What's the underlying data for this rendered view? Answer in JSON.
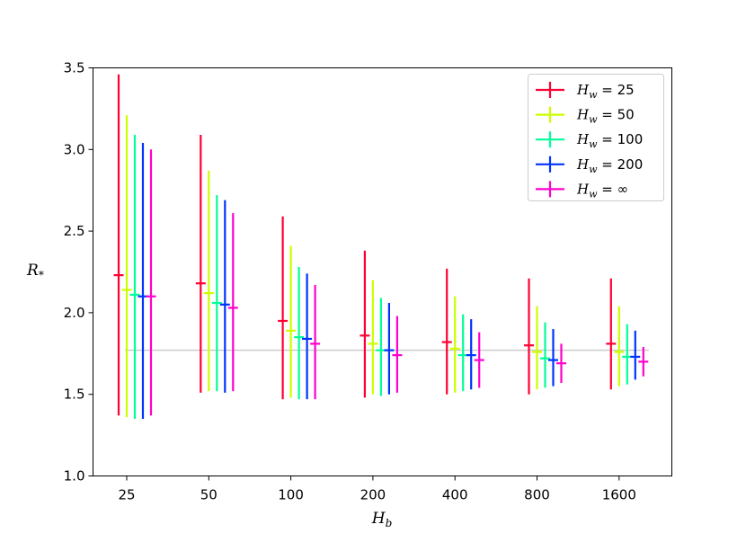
{
  "chart_data": {
    "type": "errorbar",
    "categories": [
      "25",
      "50",
      "100",
      "200",
      "400",
      "800",
      "1600"
    ],
    "xlabel": "H_b",
    "ylabel": "R_*",
    "ylim": [
      1.0,
      3.5
    ],
    "yticks": [
      "1.0",
      "1.5",
      "2.0",
      "2.5",
      "3.0",
      "3.5"
    ],
    "reference_line": 1.77,
    "reference_color": "#cccccc",
    "legend_position": "top-right",
    "grid": false,
    "series": [
      {
        "name": "H_w = 25",
        "color": "#ff0033",
        "center": [
          2.23,
          2.18,
          1.95,
          1.86,
          1.82,
          1.8,
          1.81
        ],
        "low": [
          1.37,
          1.51,
          1.47,
          1.48,
          1.5,
          1.5,
          1.53
        ],
        "high": [
          3.46,
          3.09,
          2.59,
          2.38,
          2.27,
          2.21,
          2.21
        ]
      },
      {
        "name": "H_w = 50",
        "color": "#ccff00",
        "center": [
          2.14,
          2.12,
          1.89,
          1.81,
          1.78,
          1.76,
          1.76
        ],
        "low": [
          1.36,
          1.52,
          1.48,
          1.5,
          1.51,
          1.53,
          1.55
        ],
        "high": [
          3.21,
          2.87,
          2.41,
          2.2,
          2.1,
          2.04,
          2.04
        ]
      },
      {
        "name": "H_w = 100",
        "color": "#00ff99",
        "center": [
          2.11,
          2.06,
          1.85,
          1.77,
          1.74,
          1.72,
          1.73
        ],
        "low": [
          1.35,
          1.52,
          1.47,
          1.49,
          1.52,
          1.54,
          1.56
        ],
        "high": [
          3.09,
          2.72,
          2.28,
          2.09,
          1.99,
          1.94,
          1.93
        ]
      },
      {
        "name": "H_w = 200",
        "color": "#0033ff",
        "center": [
          2.1,
          2.05,
          1.84,
          1.77,
          1.74,
          1.71,
          1.73
        ],
        "low": [
          1.35,
          1.51,
          1.47,
          1.5,
          1.53,
          1.55,
          1.59
        ],
        "high": [
          3.04,
          2.69,
          2.24,
          2.06,
          1.96,
          1.9,
          1.89
        ]
      },
      {
        "name": "H_w = ∞",
        "color": "#ff00cc",
        "center": [
          2.1,
          2.03,
          1.81,
          1.74,
          1.71,
          1.69,
          1.7
        ],
        "low": [
          1.37,
          1.52,
          1.47,
          1.51,
          1.54,
          1.57,
          1.61
        ],
        "high": [
          3.0,
          2.61,
          2.17,
          1.98,
          1.88,
          1.81,
          1.79
        ]
      }
    ]
  }
}
